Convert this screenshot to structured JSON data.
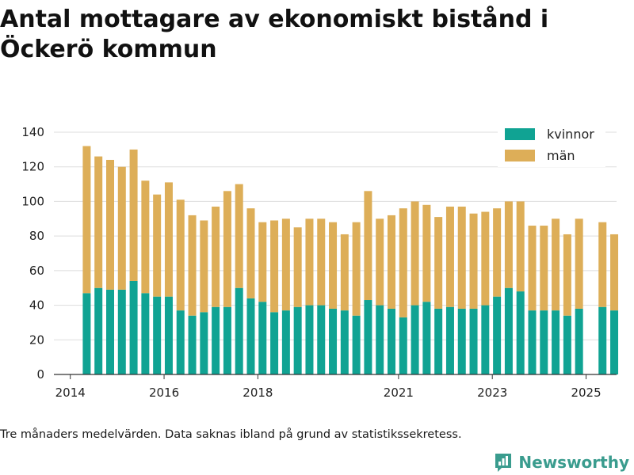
{
  "page": {
    "title": "Antal mottagare av ekonomiskt bistånd i Öckerö kommun",
    "footnote": "Tre månaders medelvärden. Data saknas ibland på grund av statistikssekretess.",
    "brand": "Newsworthy"
  },
  "colors": {
    "kvinnor": "#10a393",
    "man": "#ddae58",
    "grid": "#dddddd",
    "axis": "#333333",
    "brand": "#3a9c8e"
  },
  "chart_data": {
    "type": "bar",
    "stacked": true,
    "title": "Antal mottagare av ekonomiskt bistånd i Öckerö kommun",
    "xlabel": "",
    "ylabel": "",
    "ylim": [
      0,
      140
    ],
    "yticks": [
      0,
      20,
      40,
      60,
      80,
      100,
      120,
      140
    ],
    "xlim": [
      2013.65,
      2025.65
    ],
    "xticks": [
      2014,
      2016,
      2018,
      2021,
      2023,
      2025
    ],
    "legend": "top-right",
    "x": [
      2014.35,
      2014.6,
      2014.85,
      2015.1,
      2015.35,
      2015.6,
      2015.85,
      2016.1,
      2016.35,
      2016.6,
      2016.85,
      2017.1,
      2017.35,
      2017.6,
      2017.85,
      2018.1,
      2018.35,
      2018.6,
      2018.85,
      2019.1,
      2019.35,
      2019.6,
      2019.85,
      2020.1,
      2020.35,
      2020.6,
      2020.85,
      2021.1,
      2021.35,
      2021.6,
      2021.85,
      2022.1,
      2022.35,
      2022.6,
      2022.85,
      2023.1,
      2023.35,
      2023.6,
      2023.85,
      2024.1,
      2024.35,
      2024.6,
      2024.85,
      2025.1,
      2025.35,
      2025.6
    ],
    "series": [
      {
        "name": "kvinnor",
        "values": [
          47,
          50,
          49,
          49,
          54,
          47,
          45,
          45,
          37,
          34,
          36,
          39,
          39,
          50,
          44,
          42,
          36,
          37,
          39,
          40,
          40,
          38,
          37,
          34,
          43,
          40,
          38,
          33,
          40,
          42,
          38,
          39,
          38,
          38,
          40,
          45,
          50,
          48,
          37,
          37,
          37,
          34,
          38,
          null,
          39,
          37
        ]
      },
      {
        "name": "män",
        "values": [
          85,
          76,
          75,
          71,
          76,
          65,
          59,
          66,
          64,
          58,
          53,
          58,
          67,
          60,
          52,
          46,
          53,
          53,
          46,
          50,
          50,
          50,
          44,
          54,
          63,
          50,
          54,
          63,
          60,
          56,
          53,
          58,
          59,
          55,
          54,
          51,
          50,
          52,
          49,
          49,
          53,
          47,
          52,
          null,
          49,
          44
        ]
      }
    ]
  }
}
